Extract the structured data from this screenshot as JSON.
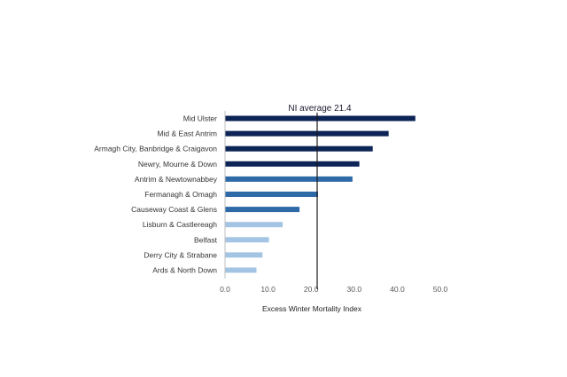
{
  "chart_data": {
    "type": "bar",
    "orientation": "horizontal",
    "categories": [
      "Mid Ulster",
      "Mid & East Antrim",
      "Armagh City, Banbridge & Craigavon",
      "Newry, Mourne & Down",
      "Antrim & Newtownabbey",
      "Fermanagh & Omagh",
      "Causeway Coast & Glens",
      "Lisburn & Castlereagh",
      "Belfast",
      "Derry City & Strabane",
      "Ards & North Down"
    ],
    "values": [
      44.2,
      38.0,
      34.3,
      31.2,
      29.6,
      21.6,
      17.3,
      13.4,
      10.2,
      8.7,
      7.3
    ],
    "colors": [
      "#0d2456",
      "#0d2456",
      "#0d2456",
      "#0d2456",
      "#2e6aa8",
      "#2e6aa8",
      "#2e6aa8",
      "#a4c4e3",
      "#a4c4e3",
      "#a4c4e3",
      "#a4c4e3"
    ],
    "xlabel": "Excess Winter Mortality Index",
    "xlim": [
      0,
      50
    ],
    "xticks": [
      "0.0",
      "10.0",
      "20.0",
      "30.0",
      "40.0",
      "50.0"
    ],
    "grid": false,
    "reference_line": {
      "value": 21.4,
      "label": "NI average 21.4",
      "color": "#1a1a1a"
    }
  }
}
